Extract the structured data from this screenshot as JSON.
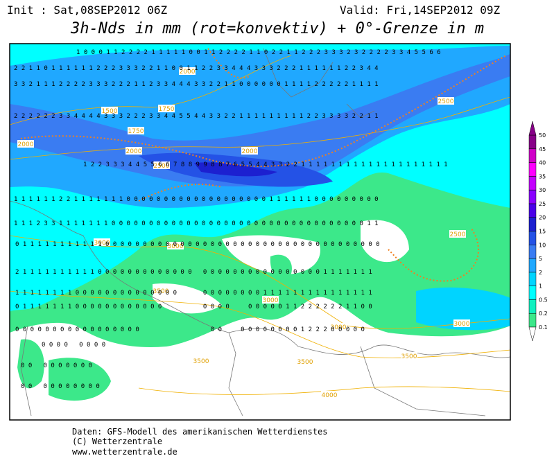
{
  "header": {
    "init": "Init : Sat,08SEP2012 06Z",
    "valid": "Valid: Fri,14SEP2012 09Z",
    "title": "3h-Nds in mm (rot=konvektiv) + 0°-Grenze in m"
  },
  "scale": {
    "labels": [
      "0.1",
      "0.2",
      "0.5",
      "1",
      "2",
      "5",
      "10",
      "15",
      "20",
      "25",
      "30",
      "35",
      "40",
      "45",
      "50"
    ],
    "colors": [
      "#3ce88a",
      "#10f0c0",
      "#00ffff",
      "#00d4ff",
      "#20a8ff",
      "#3a7cf2",
      "#2452e6",
      "#1c20d0",
      "#4a00e8",
      "#8a00ff",
      "#c400ff",
      "#ff00ff",
      "#d000c8",
      "#880088"
    ]
  },
  "contour_labels": [
    "1500",
    "1750",
    "2000",
    "1750",
    "2000",
    "2000",
    "2000",
    "2500",
    "2500",
    "3000",
    "3000",
    "3500",
    "3000",
    "3000",
    "2500",
    "3000",
    "3500",
    "3500",
    "3500",
    "4000"
  ],
  "grid_rows": [
    "1 0 0 0 1 1 2 2 2 2 1 1 1 1 1 0 0 1 1 2 2 2 2 1 1 0 2 2 1 1 2 2 2 3 3 3 2 3 2 2 2 2 3 3 4 5 5 6 6",
    "2 2 1 1 0 1 1 1 1 1 1 2 2 2 3 3 3 2 2 1 1 0 0 1 1 2 2 3 3 4 4 4 3 3 3 2 2 2 1 1 1 1 1 1 2 2 3 4 4",
    "3 3 2 1 1 1 2 2 2 2 3 3 3 2 2 2 1 1 2 3 3 4 4 4 3 3 2 2 1 1 0 0 0 0 0 0 1 1 1 1 2 2 2 2 2 1 1 1 1",
    "2 2 2 2 2 2 3 3 4 4 4 4 3 3 3 2 2 2 3 3 4 4 5 5 4 4 3 3 2 2 1 1 1 1 1 1 1 1 1 2 2 3 3 3 3 2 2 1 1",
    "1 2 2 3 3 3 4 4 5 5 6 6 7 8 8 9 9 8 8 7 6 5 5 4 4 3 3 2 2 1 1 1 1 1 1 1 1 1 1 1 1 1 1 1 1 1 1 1 1",
    "1 1 1 1 1 1 2 2 1 1 1 1 1 1 1 0 0 0 0 0 0 0 0 0 0 0 0 0 0 0 0 0 0 0 1 1 1 1 1 1 0 0 0 0 0 0 0 0 0",
    "1 1 1 2 3 3 1 1 1 1 1 1 1 0 0 0 0 0 0 0 0 0 0 0 0 0 0 0 0 0 0 0 0 0 0 0 0 0 0 0 0 0 0 0 0 0 0 1 1",
    "0 1 1 1 1 1 1 1 1 1 1 1 0 0 0 0 0 0 0 0 0 0 0 0 0 0 0 0 0 0 0 0 0 0 0 0 0 0 0 0 0 0 0 0 0 0 0 0 0",
    "2 1 1 1 1 1 1 1 1 1 1 0 0 0 0 0 0 0 0 0 0 0 0 0   0 0 0 0 0 0 0 0 0 0 0 0 0 0 0 0 1 1 1 1 1 1 1",
    "1 1 1 1 1 1 1 1 0 0 0 0 0 0 0 0 0 0 0 0 0 0       0 0 0 0 0 0 0 0 1 1 1 1 1 1 1 1 1 1 1 1 1 1 1",
    "0 1 1 1 1 1 1 1 0 0 0 0 0 0 0 0 0 0 0 0           0 0 0 0     0 0 0 0 0 1 1 2 2 2 2 2 2 1 1 0 0",
    "0 0 0 0 0 0 0 0 0 0 0 0 0 0 0 0 0                   0 0     0 0 0 0 0 0 0 0 1 2 2 2 0 0 0 0 0",
    "0 0 0 0   0 0 0 0",
    "0 0   0 0 0 0 0 0 0",
    "0 0   0 0 0 0 0 0 0 0"
  ],
  "footer": [
    "Daten: GFS-Modell des amerikanischen Wetterdienstes",
    "(C) Wetterzentrale",
    "www.wetterzentrale.de"
  ]
}
